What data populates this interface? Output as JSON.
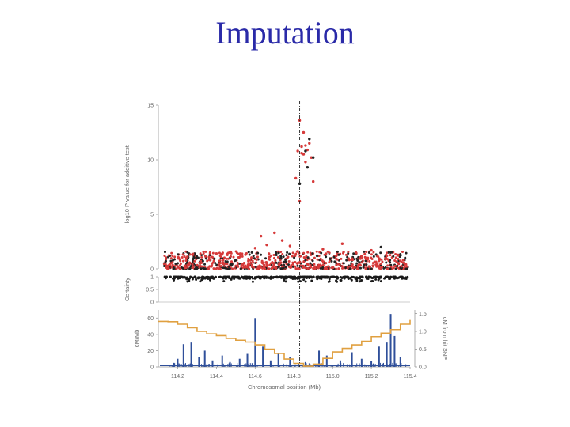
{
  "slide": {
    "title": "Imputation"
  },
  "chart_data": [
    {
      "panel": "association",
      "type": "scatter",
      "ylabel": "− log10 P value for additive test",
      "ylim": [
        0,
        15
      ],
      "yticks": [
        "0",
        "5",
        "10",
        "15"
      ],
      "xlim": [
        114.1,
        115.4
      ],
      "series": [
        {
          "color": "#d63a3a",
          "points": [
            [
              114.83,
              13.6
            ],
            [
              114.85,
              12.5
            ],
            [
              114.86,
              11.3
            ],
            [
              114.84,
              11.2
            ],
            [
              114.82,
              10.8
            ],
            [
              114.85,
              10.5
            ],
            [
              114.87,
              10.9
            ],
            [
              114.88,
              11.5
            ],
            [
              114.89,
              10.2
            ],
            [
              114.84,
              10.6
            ],
            [
              114.83,
              6.2
            ],
            [
              114.81,
              8.3
            ],
            [
              114.86,
              9.8
            ],
            [
              114.9,
              8.0
            ],
            [
              114.63,
              3.0
            ],
            [
              114.66,
              2.2
            ],
            [
              114.7,
              3.3
            ],
            [
              114.74,
              2.6
            ],
            [
              114.78,
              2.1
            ],
            [
              114.82,
              1.6
            ],
            [
              114.6,
              1.9
            ],
            [
              114.55,
              1.3
            ],
            [
              114.95,
              1.8
            ],
            [
              115.05,
              2.3
            ],
            [
              115.12,
              1.5
            ],
            [
              115.2,
              1.7
            ],
            [
              115.28,
              1.2
            ],
            [
              114.4,
              1.4
            ],
            [
              114.25,
              1.1
            ]
          ]
        },
        {
          "color": "#222222",
          "points": [
            [
              114.88,
              11.9
            ],
            [
              114.9,
              10.2
            ],
            [
              114.86,
              10.8
            ],
            [
              114.87,
              9.3
            ],
            [
              114.83,
              7.8
            ],
            [
              114.92,
              1.2
            ],
            [
              115.25,
              2.0
            ],
            [
              115.3,
              1.5
            ],
            [
              114.3,
              1.0
            ],
            [
              114.5,
              0.8
            ]
          ]
        }
      ],
      "baseline_band": {
        "y_range": [
          0.0,
          1.6
        ],
        "colors": [
          "#d63a3a",
          "#222222"
        ]
      }
    },
    {
      "panel": "certainty",
      "type": "scatter",
      "ylabel": "Certainty",
      "ylim": [
        0,
        1
      ],
      "yticks": [
        "0",
        "0.5",
        "1"
      ]
    },
    {
      "panel": "recombination",
      "type": "line",
      "xlabel": "Chromosomal position (Mb)",
      "ylabel": "cM/Mb",
      "ylabel_right": "cM from hit SNP",
      "xlim": [
        114.1,
        115.4
      ],
      "ylim": [
        0,
        70
      ],
      "ylim_right": [
        0,
        1.6
      ],
      "xticks": [
        "114.2",
        "114.4",
        "114.6",
        "114.8",
        "115.0",
        "115.2",
        "115.4"
      ],
      "yticks_left": [
        "0",
        "20",
        "40",
        "60"
      ],
      "yticks_right": [
        "0.0",
        "0.5",
        "1.0",
        "1.5"
      ],
      "rate_series": {
        "color": "#2f4f9a",
        "x": [
          114.18,
          114.2,
          114.23,
          114.27,
          114.31,
          114.34,
          114.38,
          114.43,
          114.47,
          114.52,
          114.56,
          114.6,
          114.64,
          114.68,
          114.72,
          114.78,
          114.86,
          114.93,
          114.97,
          115.04,
          115.1,
          115.15,
          115.2,
          115.24,
          115.28,
          115.3,
          115.32,
          115.35
        ],
        "y": [
          5,
          10,
          28,
          30,
          12,
          20,
          8,
          14,
          6,
          10,
          16,
          60,
          25,
          8,
          17,
          12,
          6,
          20,
          14,
          8,
          18,
          10,
          7,
          25,
          30,
          65,
          38,
          12
        ]
      },
      "genetic_map": {
        "color": "#e0a040",
        "x": [
          114.1,
          114.15,
          114.2,
          114.25,
          114.3,
          114.35,
          114.4,
          114.45,
          114.5,
          114.55,
          114.6,
          114.65,
          114.7,
          114.75,
          114.8,
          114.85,
          114.9,
          114.95,
          115.0,
          115.05,
          115.1,
          115.15,
          115.2,
          115.25,
          115.3,
          115.35,
          115.4
        ],
        "y": [
          1.28,
          1.27,
          1.2,
          1.1,
          1.0,
          0.93,
          0.88,
          0.8,
          0.75,
          0.7,
          0.62,
          0.5,
          0.38,
          0.22,
          0.1,
          0.02,
          0.08,
          0.24,
          0.42,
          0.52,
          0.62,
          0.72,
          0.85,
          0.95,
          1.05,
          1.2,
          1.32
        ]
      }
    }
  ],
  "region_markers": {
    "x": [
      114.83,
      114.94
    ],
    "style": "dash-dot"
  }
}
